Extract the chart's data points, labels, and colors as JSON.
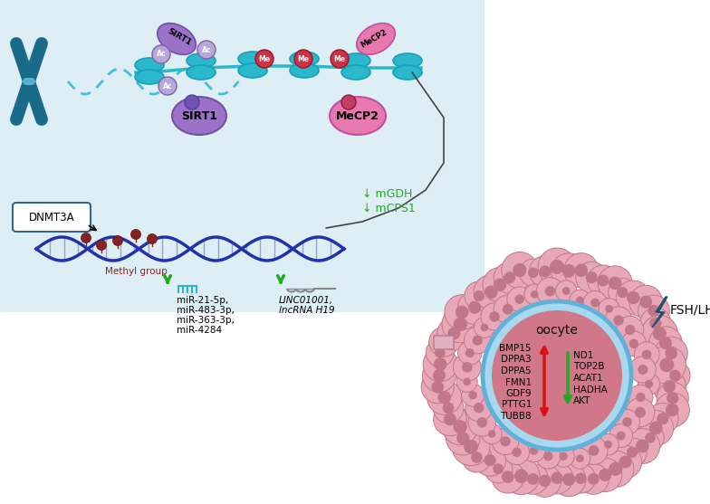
{
  "figsize": [
    7.84,
    5.57
  ],
  "dpi": 100,
  "bg_panel_color": "#ddeef5",
  "white_bg": "#ffffff",
  "chromosome_color": "#1a6b8a",
  "chromatin_color": "#2bb8cc",
  "sirt1_color": "#9b72c8",
  "sirt1_edge": "#7050a8",
  "mecp2_color": "#e878b0",
  "mecp2_edge": "#c050a0",
  "ac_color": "#b8a8d8",
  "me_color": "#cc3344",
  "dna_color": "#2233aa",
  "methyl_color": "#882222",
  "green_arrow": "#22aa22",
  "red_arrow": "#dd1111",
  "cumulus_color": "#e8a8b8",
  "cumulus_edge": "#c07888",
  "zona_color": "#a8d8ee",
  "zona_edge": "#60b0d8",
  "oocyte_color": "#d07888",
  "fsh_bolt_color": "#1a5070",
  "up_genes": [
    "BMP15",
    "DPPA3",
    "DPPA5",
    "FMN1",
    "GDF9",
    "PTTG1",
    "TUBB8"
  ],
  "down_genes": [
    "ND1",
    "TOP2B",
    "ACAT1",
    "HADHA",
    "AKT"
  ],
  "mirna_lines": [
    "miR-21-5p,",
    "miR-483-3p,",
    "miR-363-3p,",
    "miR-4284"
  ],
  "lncrna_lines": [
    "LINC01001,",
    "lncRNA H19"
  ],
  "mgdh": "↓ mGDH",
  "mcps1": "↓ mCPS1"
}
